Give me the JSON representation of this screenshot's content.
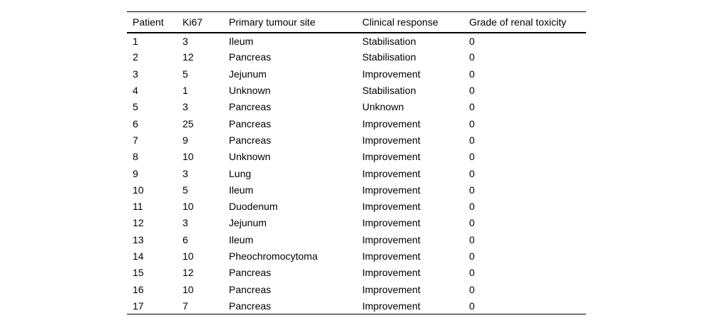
{
  "table": {
    "column_keys": [
      "patient",
      "ki67",
      "primary_tumour_site",
      "clinical_response",
      "grade_of_renal_toxicity"
    ],
    "columns": [
      "Patient",
      "Ki67",
      "Primary tumour site",
      "Clinical response",
      "Grade of renal toxicity"
    ],
    "rows": [
      [
        "1",
        "3",
        "Ileum",
        "Stabilisation",
        "0"
      ],
      [
        "2",
        "12",
        "Pancreas",
        "Stabilisation",
        "0"
      ],
      [
        "3",
        "5",
        "Jejunum",
        "Improvement",
        "0"
      ],
      [
        "4",
        "1",
        "Unknown",
        "Stabilisation",
        "0"
      ],
      [
        "5",
        "3",
        "Pancreas",
        "Unknown",
        "0"
      ],
      [
        "6",
        "25",
        "Pancreas",
        "Improvement",
        "0"
      ],
      [
        "7",
        "9",
        "Pancreas",
        "Improvement",
        "0"
      ],
      [
        "8",
        "10",
        "Unknown",
        "Improvement",
        "0"
      ],
      [
        "9",
        "3",
        "Lung",
        "Improvement",
        "0"
      ],
      [
        "10",
        "5",
        "Ileum",
        "Improvement",
        "0"
      ],
      [
        "11",
        "10",
        "Duodenum",
        "Improvement",
        "0"
      ],
      [
        "12",
        "3",
        "Jejunum",
        "Improvement",
        "0"
      ],
      [
        "13",
        "6",
        "Ileum",
        "Improvement",
        "0"
      ],
      [
        "14",
        "10",
        "Pheochromocytoma",
        "Improvement",
        "0"
      ],
      [
        "15",
        "12",
        "Pancreas",
        "Improvement",
        "0"
      ],
      [
        "16",
        "10",
        "Pancreas",
        "Improvement",
        "0"
      ],
      [
        "17",
        "7",
        "Pancreas",
        "Improvement",
        "0"
      ]
    ]
  },
  "colors": {
    "text": "#000000",
    "background": "#ffffff",
    "rule": "#000000"
  },
  "chart_data": {
    "type": "table",
    "title": "",
    "columns": [
      "Patient",
      "Ki67",
      "Primary tumour site",
      "Clinical response",
      "Grade of renal toxicity"
    ],
    "rows": [
      [
        1,
        3,
        "Ileum",
        "Stabilisation",
        0
      ],
      [
        2,
        12,
        "Pancreas",
        "Stabilisation",
        0
      ],
      [
        3,
        5,
        "Jejunum",
        "Improvement",
        0
      ],
      [
        4,
        1,
        "Unknown",
        "Stabilisation",
        0
      ],
      [
        5,
        3,
        "Pancreas",
        "Unknown",
        0
      ],
      [
        6,
        25,
        "Pancreas",
        "Improvement",
        0
      ],
      [
        7,
        9,
        "Pancreas",
        "Improvement",
        0
      ],
      [
        8,
        10,
        "Unknown",
        "Improvement",
        0
      ],
      [
        9,
        3,
        "Lung",
        "Improvement",
        0
      ],
      [
        10,
        5,
        "Ileum",
        "Improvement",
        0
      ],
      [
        11,
        10,
        "Duodenum",
        "Improvement",
        0
      ],
      [
        12,
        3,
        "Jejunum",
        "Improvement",
        0
      ],
      [
        13,
        6,
        "Ileum",
        "Improvement",
        0
      ],
      [
        14,
        10,
        "Pheochromocytoma",
        "Improvement",
        0
      ],
      [
        15,
        12,
        "Pancreas",
        "Improvement",
        0
      ],
      [
        16,
        10,
        "Pancreas",
        "Improvement",
        0
      ],
      [
        17,
        7,
        "Pancreas",
        "Improvement",
        0
      ]
    ]
  }
}
